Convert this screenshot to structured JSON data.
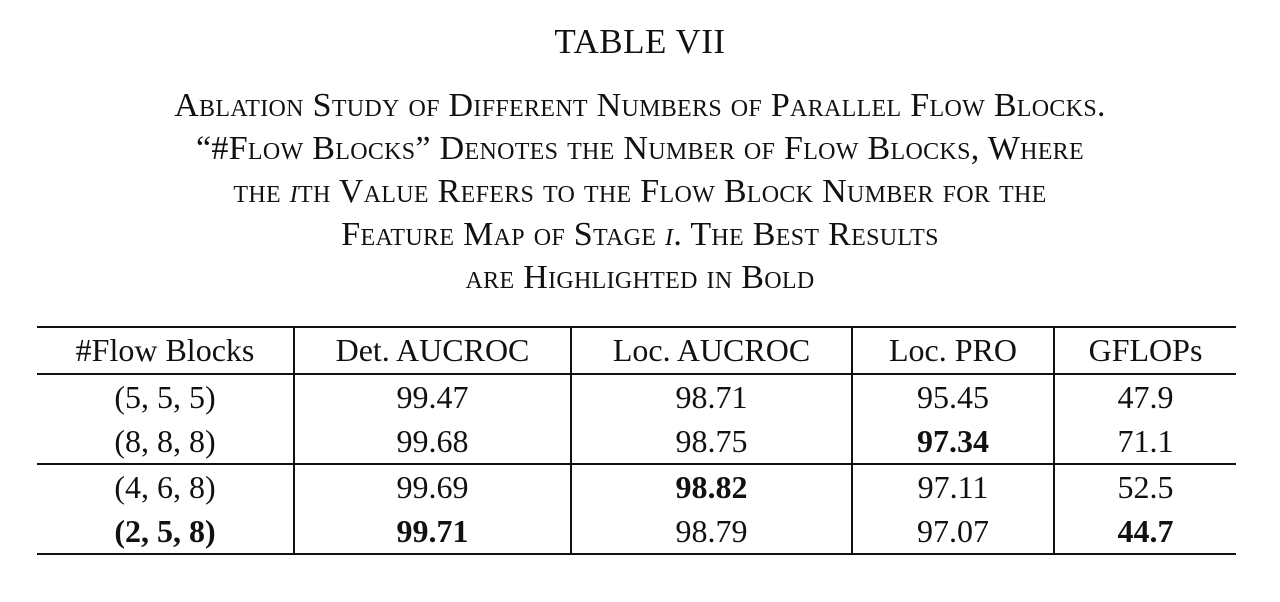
{
  "table_label": "TABLE VII",
  "caption_lines": [
    "Ablation Study of Different Numbers of Parallel Flow Blocks.",
    "“#Flow Blocks” Denotes the Number of Flow Blocks, Where",
    "the ith Value Refers to the Flow Block Number for the",
    "Feature Map of Stage i. The Best Results",
    "are Highlighted in Bold"
  ],
  "table": {
    "headers": [
      "#Flow Blocks",
      "Det. AUCROC",
      "Loc. AUCROC",
      "Loc. PRO",
      "GFLOPs"
    ],
    "rows": [
      [
        "(5, 5, 5)",
        "99.47",
        "98.71",
        "95.45",
        "47.9"
      ],
      [
        "(8, 8, 8)",
        "99.68",
        "98.75",
        "97.34",
        "71.1"
      ],
      [
        "(4, 6, 8)",
        "99.69",
        "98.82",
        "97.11",
        "52.5"
      ],
      [
        "(2, 5, 8)",
        "99.71",
        "98.79",
        "97.07",
        "44.7"
      ]
    ],
    "bold_cells": [
      [
        1,
        3
      ],
      [
        2,
        2
      ],
      [
        3,
        0
      ],
      [
        3,
        1
      ],
      [
        3,
        4
      ]
    ]
  }
}
